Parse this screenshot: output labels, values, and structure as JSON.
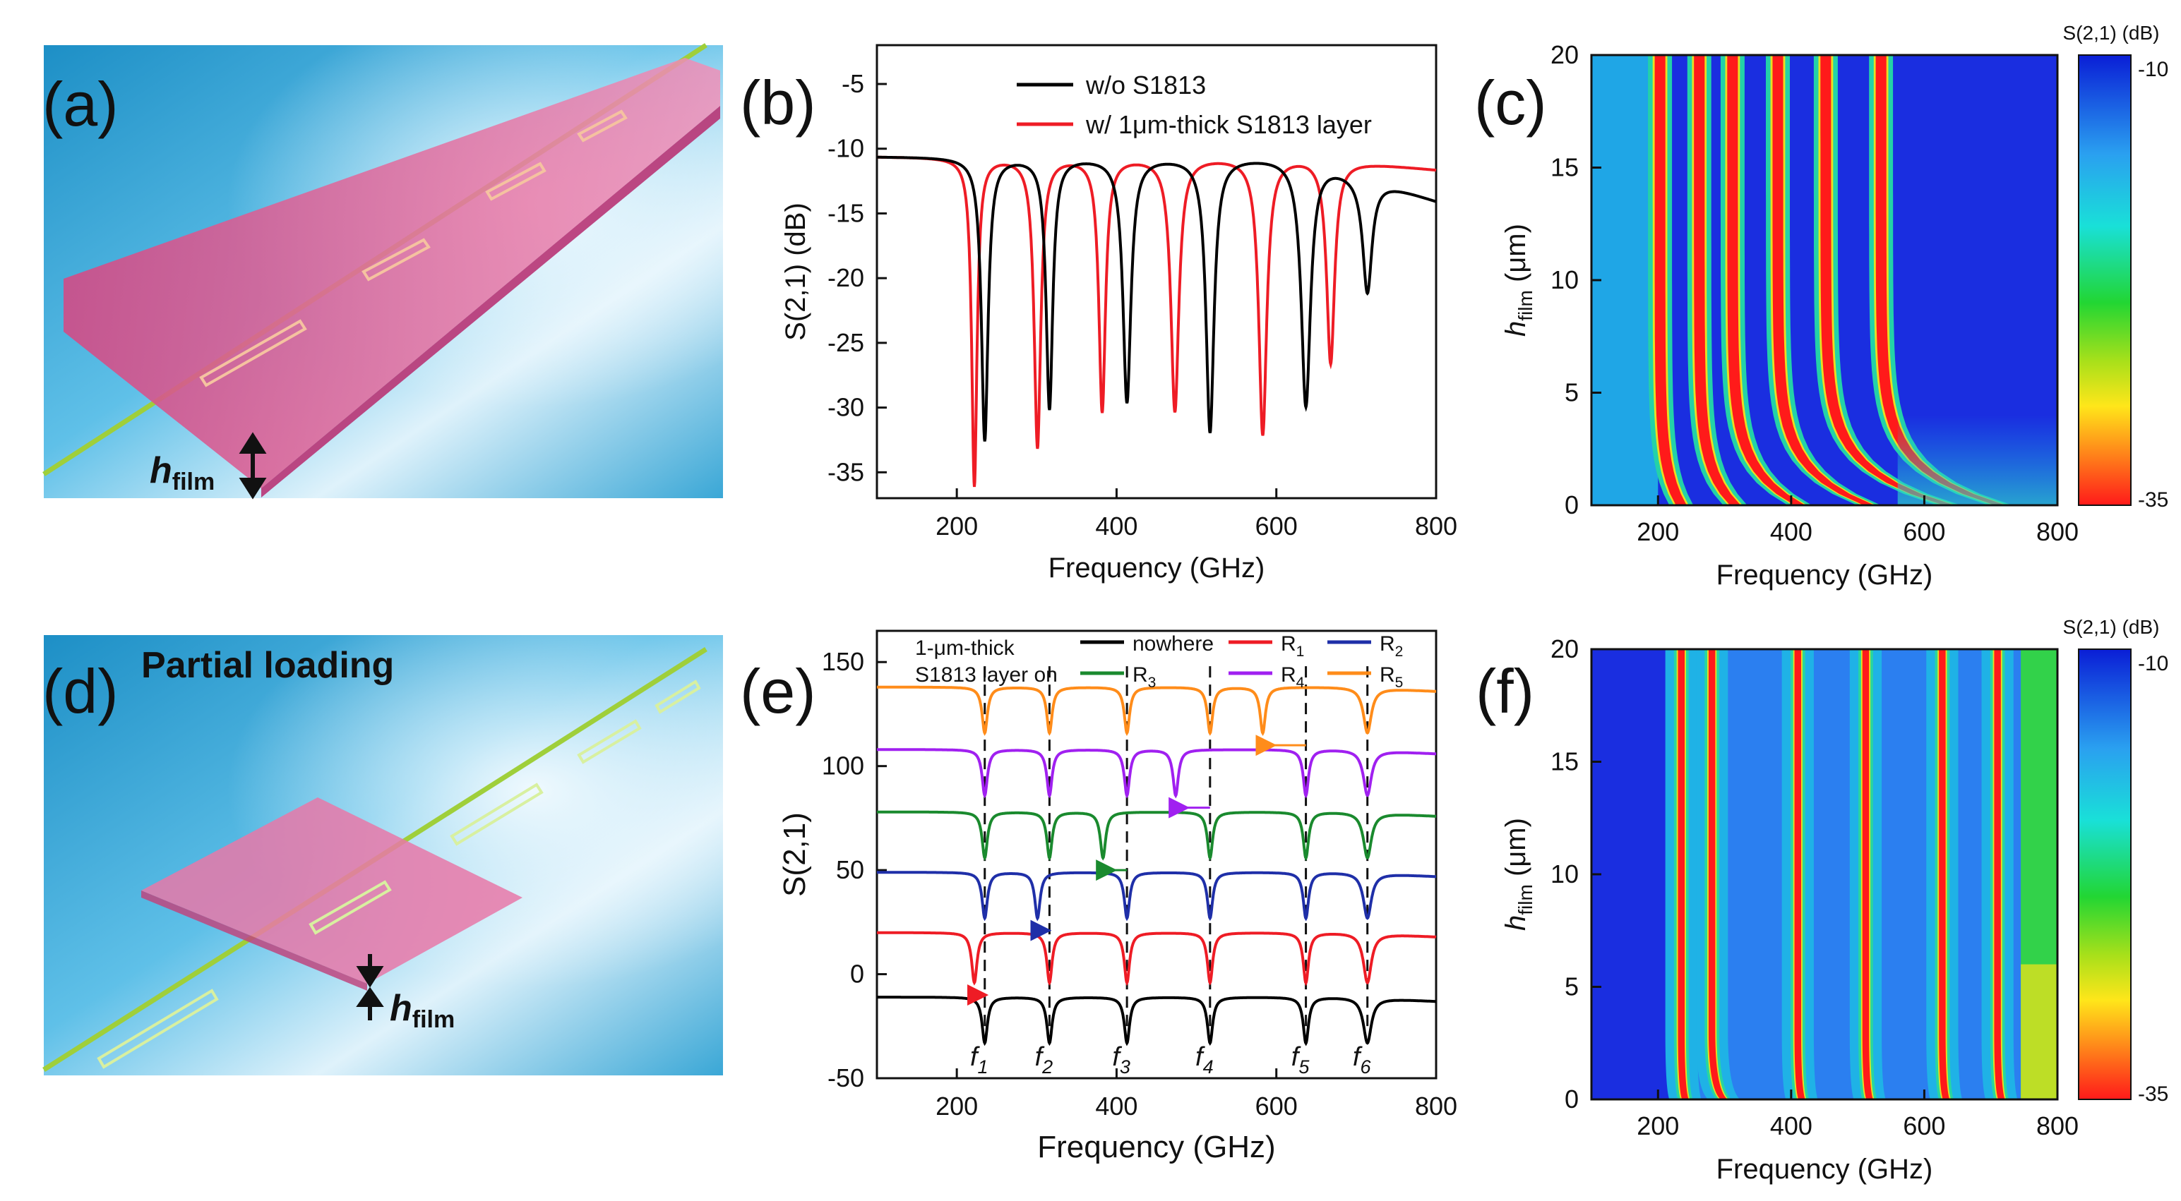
{
  "colors": {
    "black": "#000000",
    "red": "#ee1c25",
    "blue": "#1f2fa8",
    "green": "#1a8a2e",
    "purple": "#a020f0",
    "orange": "#ff8c1a",
    "device_pink": "#e0558e",
    "bg_blue": "#3aa7d6"
  },
  "panels": {
    "a": {
      "label": "(a)",
      "film_label": "h",
      "film_sub": "film"
    },
    "b": {
      "label": "(b)"
    },
    "c": {
      "label": "(c)"
    },
    "d": {
      "label": "(d)",
      "title": "Partial loading",
      "film_label": "h",
      "film_sub": "film"
    },
    "e": {
      "label": "(e)"
    },
    "f": {
      "label": "(f)"
    }
  },
  "chart_data": [
    {
      "id": "b",
      "type": "line",
      "xlabel": "Frequency (GHz)",
      "ylabel": "S(2,1) (dB)",
      "xlim": [
        100,
        800
      ],
      "ylim": [
        -37,
        -2
      ],
      "xticks": [
        200,
        400,
        600,
        800
      ],
      "yticks": [
        -5,
        -10,
        -15,
        -20,
        -25,
        -30,
        -35
      ],
      "legend_position": "top-right",
      "series": [
        {
          "name": "w/o S1813",
          "color": "#000000",
          "baseline": -10.6,
          "dips": [
            [
              235,
              -32.5,
              5
            ],
            [
              316,
              -30,
              5
            ],
            [
              413,
              -29.5,
              6
            ],
            [
              517,
              -31.8,
              6
            ],
            [
              637,
              -29.8,
              7
            ],
            [
              714,
              -21,
              7
            ]
          ]
        },
        {
          "name": "w/ 1μm-thick S1813 layer",
          "color": "#ee1c25",
          "baseline": -10.6,
          "dips": [
            [
              222,
              -36,
              4
            ],
            [
              301,
              -33,
              5
            ],
            [
              382,
              -30.2,
              5
            ],
            [
              473,
              -30.2,
              6
            ],
            [
              583,
              -32,
              6
            ],
            [
              668,
              -26.5,
              6
            ]
          ]
        }
      ]
    },
    {
      "id": "c",
      "type": "heatmap",
      "xlabel": "Frequency (GHz)",
      "ylabel": "h",
      "ylabel_sub": "film",
      "ylabel_unit": " (μm)",
      "xlim": [
        100,
        800
      ],
      "ylim": [
        0,
        20
      ],
      "xticks": [
        200,
        400,
        600,
        800
      ],
      "yticks": [
        0,
        5,
        10,
        15,
        20
      ],
      "colorbar": {
        "title": "S(2,1) (dB)",
        "max_label": "-10",
        "min_label": "-35"
      },
      "resonances_at_thick_film": [
        203,
        262,
        312,
        380,
        452,
        535
      ],
      "resonances_at_zero_film": [
        235,
        316,
        413,
        517,
        637,
        714
      ]
    },
    {
      "id": "e",
      "type": "line",
      "xlabel": "Frequency (GHz)",
      "ylabel": "S(2,1)",
      "xlim": [
        100,
        800
      ],
      "ylim": [
        -50,
        165
      ],
      "xticks": [
        200,
        400,
        600,
        800
      ],
      "yticks": [
        150,
        100,
        50,
        0,
        -50
      ],
      "note_line1": "1-μm-thick",
      "note_line2": "S1813 layer on",
      "resonance_markers": [
        {
          "label": "f",
          "sub": "1",
          "x": 235
        },
        {
          "label": "f",
          "sub": "2",
          "x": 316
        },
        {
          "label": "f",
          "sub": "3",
          "x": 413
        },
        {
          "label": "f",
          "sub": "4",
          "x": 517
        },
        {
          "label": "f",
          "sub": "5",
          "x": 637
        },
        {
          "label": "f",
          "sub": "6",
          "x": 714
        }
      ],
      "series": [
        {
          "name": "nowhere",
          "sub": "",
          "color": "#000000",
          "offset": -11,
          "shifted_index": -1,
          "shifted_to": 0,
          "depth": 22
        },
        {
          "name": "R",
          "sub": "1",
          "color": "#ee1c25",
          "offset": 20,
          "shifted_index": 0,
          "shifted_to": 222,
          "depth": 24
        },
        {
          "name": "R",
          "sub": "2",
          "color": "#1f2fa8",
          "offset": 49,
          "shifted_index": 1,
          "shifted_to": 301,
          "depth": 22
        },
        {
          "name": "R",
          "sub": "3",
          "color": "#1a8a2e",
          "offset": 78,
          "shifted_index": 2,
          "shifted_to": 383,
          "depth": 22
        },
        {
          "name": "R",
          "sub": "4",
          "color": "#a020f0",
          "offset": 108,
          "shifted_index": 3,
          "shifted_to": 474,
          "depth": 22
        },
        {
          "name": "R",
          "sub": "5",
          "color": "#ff8c1a",
          "offset": 138,
          "shifted_index": 4,
          "shifted_to": 583,
          "depth": 22
        }
      ]
    },
    {
      "id": "f",
      "type": "heatmap",
      "xlabel": "Frequency (GHz)",
      "ylabel": "h",
      "ylabel_sub": "film",
      "ylabel_unit": " (μm)",
      "xlim": [
        100,
        800
      ],
      "ylim": [
        0,
        20
      ],
      "xticks": [
        200,
        400,
        600,
        800
      ],
      "yticks": [
        0,
        5,
        10,
        15,
        20
      ],
      "colorbar": {
        "title": "S(2,1) (dB)",
        "max_label": "-10",
        "min_label": "-35"
      },
      "resonances": [
        235,
        281,
        410,
        512,
        627,
        710
      ]
    }
  ]
}
